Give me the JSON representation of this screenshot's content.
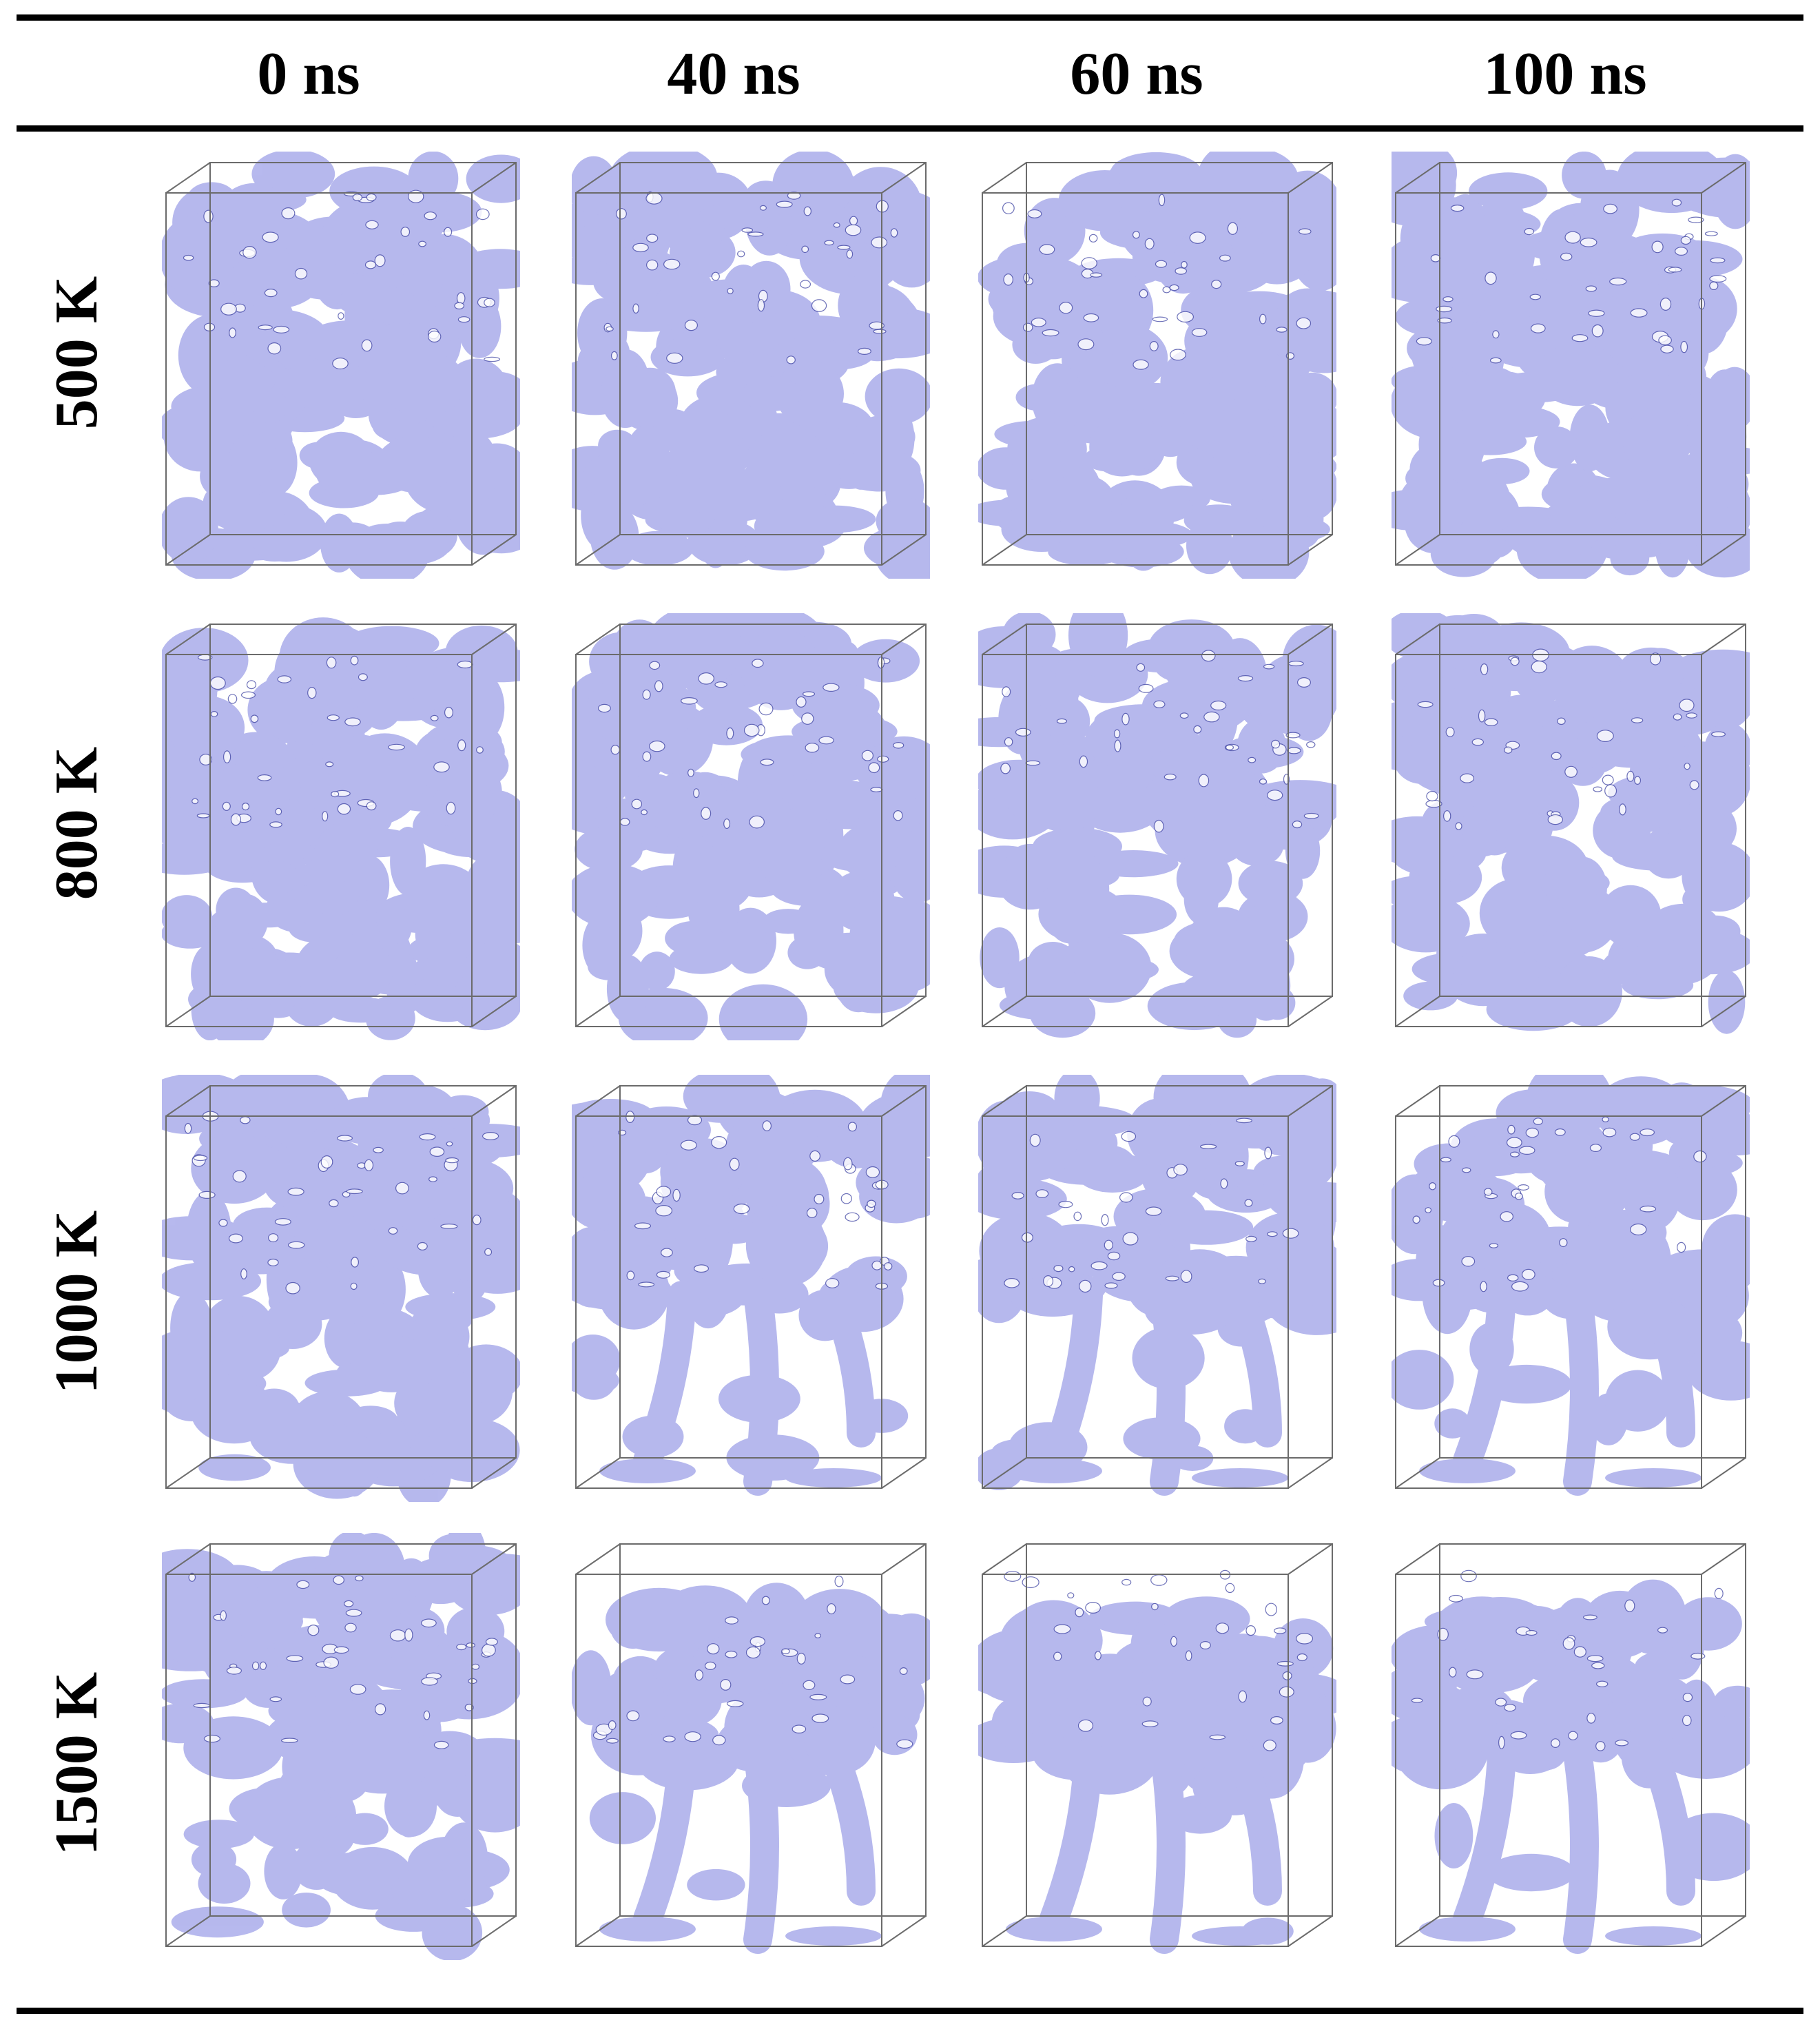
{
  "figure": {
    "columns": [
      "0 ns",
      "40 ns",
      "60 ns",
      "100 ns"
    ],
    "rows": [
      "500 K",
      "800 K",
      "1000 K",
      "1500 K"
    ],
    "foam_color": "#7b7fe0",
    "foam_edge_color": "#4a4fa8",
    "box_color": "#6b6b6b",
    "panels": [
      [
        {
          "top_density": 1.0,
          "bottom_density": 1.0,
          "ligaments": 0
        },
        {
          "top_density": 1.0,
          "bottom_density": 1.0,
          "ligaments": 0
        },
        {
          "top_density": 1.0,
          "bottom_density": 1.0,
          "ligaments": 0
        },
        {
          "top_density": 1.0,
          "bottom_density": 1.0,
          "ligaments": 0
        }
      ],
      [
        {
          "top_density": 1.0,
          "bottom_density": 1.0,
          "ligaments": 0
        },
        {
          "top_density": 0.95,
          "bottom_density": 0.7,
          "ligaments": 0
        },
        {
          "top_density": 0.95,
          "bottom_density": 0.65,
          "ligaments": 0
        },
        {
          "top_density": 0.95,
          "bottom_density": 0.65,
          "ligaments": 0
        }
      ],
      [
        {
          "top_density": 1.0,
          "bottom_density": 0.9,
          "ligaments": 0
        },
        {
          "top_density": 0.9,
          "bottom_density": 0.15,
          "ligaments": 3
        },
        {
          "top_density": 0.9,
          "bottom_density": 0.15,
          "ligaments": 3
        },
        {
          "top_density": 0.9,
          "bottom_density": 0.15,
          "ligaments": 3
        }
      ],
      [
        {
          "top_density": 1.0,
          "bottom_density": 0.6,
          "ligaments": 0
        },
        {
          "top_density": 0.8,
          "bottom_density": 0.05,
          "ligaments": 3
        },
        {
          "top_density": 0.8,
          "bottom_density": 0.05,
          "ligaments": 3
        },
        {
          "top_density": 0.75,
          "bottom_density": 0.05,
          "ligaments": 3
        }
      ]
    ]
  }
}
